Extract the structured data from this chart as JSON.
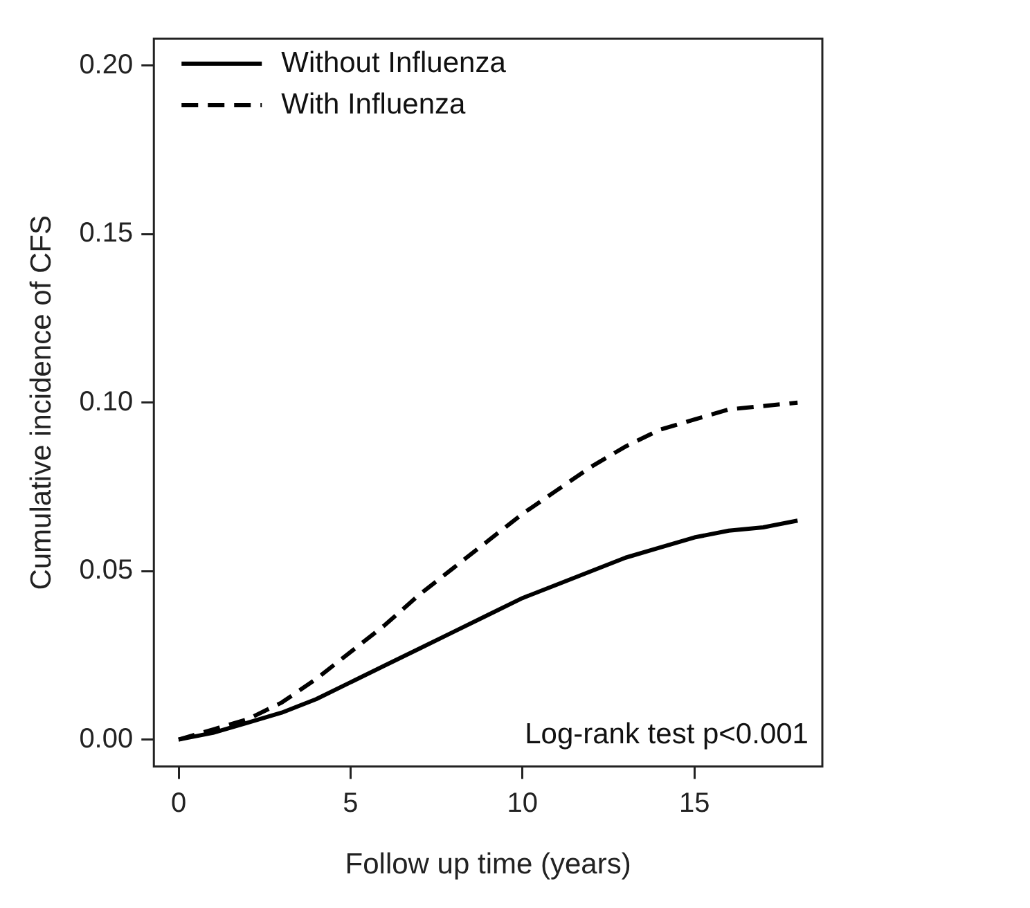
{
  "chart_data": {
    "type": "line",
    "xlabel": "Follow up time (years)",
    "ylabel": "Cumulative incidence of CFS",
    "x": [
      0,
      1,
      2,
      3,
      4,
      5,
      6,
      7,
      8,
      9,
      10,
      11,
      12,
      13,
      14,
      15,
      16,
      17,
      18
    ],
    "series": [
      {
        "name": "Without Influenza",
        "color": "#000000",
        "line_style": "solid",
        "values": [
          0,
          0.002,
          0.005,
          0.008,
          0.012,
          0.017,
          0.022,
          0.027,
          0.032,
          0.037,
          0.042,
          0.046,
          0.05,
          0.054,
          0.057,
          0.06,
          0.062,
          0.063,
          0.065
        ]
      },
      {
        "name": "With Influenza",
        "color": "#000000",
        "line_style": "dashed",
        "values": [
          0,
          0.003,
          0.006,
          0.011,
          0.018,
          0.026,
          0.034,
          0.043,
          0.051,
          0.059,
          0.067,
          0.074,
          0.081,
          0.087,
          0.092,
          0.095,
          0.098,
          0.099,
          0.1
        ]
      }
    ],
    "xlim": [
      -0.72,
      18.72
    ],
    "ylim": [
      -0.008,
      0.208
    ],
    "xticks": [
      0,
      5,
      10,
      15
    ],
    "yticks": [
      {
        "value": 0,
        "label": "0.00"
      },
      {
        "value": 0.05,
        "label": "0.05"
      },
      {
        "value": 0.1,
        "label": "0.10"
      },
      {
        "value": 0.15,
        "label": "0.15"
      },
      {
        "value": 0.2,
        "label": "0.20"
      }
    ],
    "grid": false,
    "legend": "top left",
    "marker": "none",
    "annotations": [
      "Log-rank test p<0.001"
    ]
  }
}
